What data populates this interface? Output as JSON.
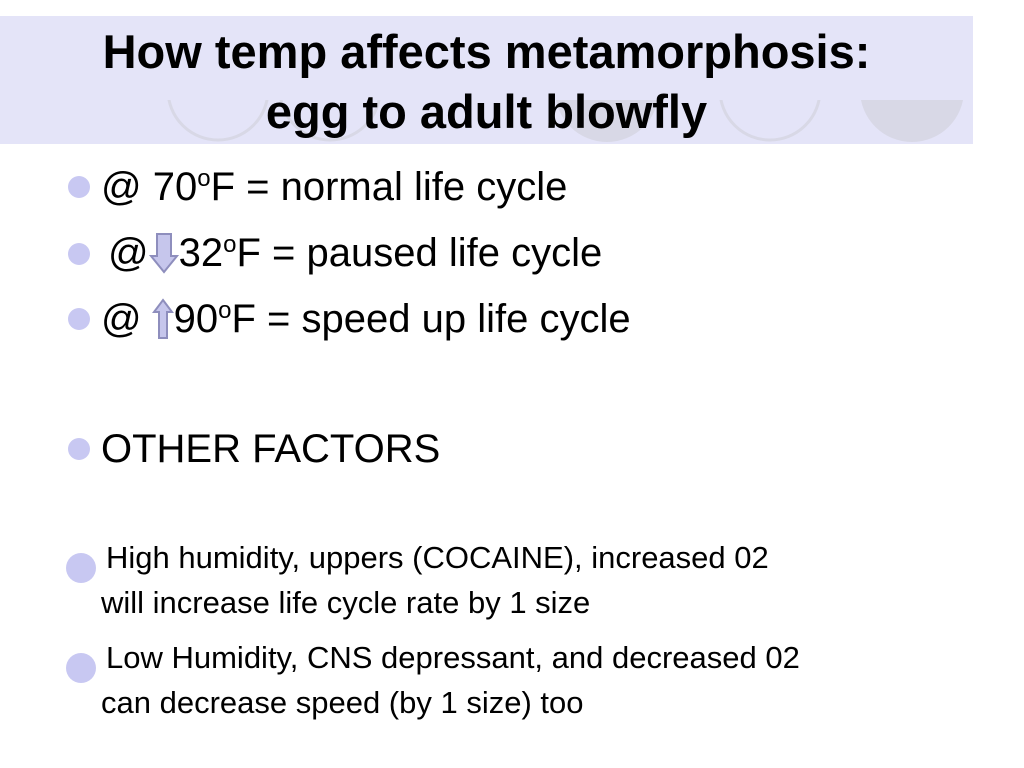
{
  "colors": {
    "title_band": "#e4e4f8",
    "bullet": "#c8c8f2",
    "arrow_fill": "#c6c6ec",
    "arrow_stroke": "#8e8ebd",
    "deco_circle": "#d8d8e6"
  },
  "slide": {
    "title_line1": "How temp affects metamorphosis:",
    "title_line2": "egg to adult blowfly",
    "bullets": [
      {
        "prefix": "@ 70",
        "sup": "o",
        "suffix": "F = normal life cycle"
      },
      {
        "prefix": "@",
        "icon": "down-arrow-icon",
        "value": "32",
        "sup": "o",
        "suffix": "F = paused life cycle"
      },
      {
        "prefix": "@",
        "icon": "up-arrow-icon",
        "value": "90",
        "sup": "o",
        "suffix": "F = speed up life cycle"
      },
      {
        "text": "OTHER FACTORS"
      }
    ],
    "sub_bullets": [
      {
        "line1": "High humidity, uppers (COCAINE), increased 02",
        "line2": "will increase life cycle rate by 1 size"
      },
      {
        "line1": "Low Humidity, CNS depressant, and decreased 02",
        "line2": "can decrease speed (by 1 size) too"
      }
    ]
  }
}
